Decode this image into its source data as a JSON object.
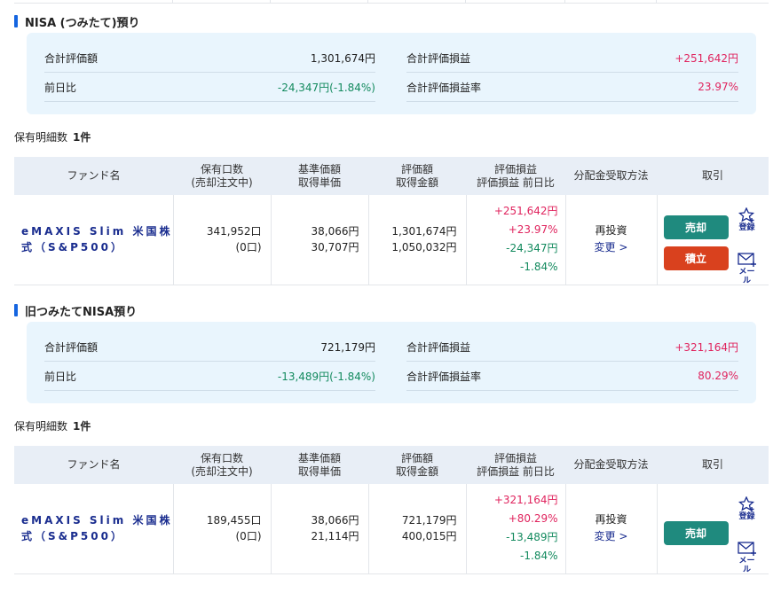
{
  "colors": {
    "accent": "#1565e0",
    "positive": "#e0245e",
    "negative": "#138a5e",
    "sell": "#1f8a7e",
    "accumulate": "#d9411e"
  },
  "table_headers": {
    "fund": "ファンド名",
    "units": "保有口数",
    "units_sub": "(売却注文中)",
    "nav": "基準価額",
    "nav_sub": "取得単価",
    "value": "評価額",
    "value_sub": "取得金額",
    "pl": "評価損益",
    "pl_sub": "評価損益 前日比",
    "dist": "分配金受取方法",
    "trade": "取引"
  },
  "sections": [
    {
      "title": "NISA (つみたて)預り",
      "summary": {
        "total_value_label": "合計評価額",
        "total_value": "1,301,674円",
        "day_change_label": "前日比",
        "day_change": "-24,347円(-1.84%)",
        "total_pl_label": "合計評価損益",
        "total_pl": "+251,642円",
        "pl_rate_label": "合計評価損益率",
        "pl_rate": "23.97%"
      },
      "count_label": "保有明細数",
      "count": "1件",
      "row": {
        "fund_name": "eMAXIS Slim 米国株式（S&P500）",
        "units": "341,952口",
        "units_pending": "(0口)",
        "nav": "38,066円",
        "avg_cost": "30,707円",
        "value": "1,301,674円",
        "cost": "1,050,032円",
        "pl": "+251,642円",
        "pl_pct": "+23.97%",
        "day_change": "-24,347円",
        "day_change_pct": "-1.84%",
        "dist_method": "再投資",
        "change_link": "変更",
        "sell": "売却",
        "accumulate": "積立",
        "register": "登録",
        "mail": "メール"
      }
    },
    {
      "title": "旧つみたてNISA預り",
      "summary": {
        "total_value_label": "合計評価額",
        "total_value": "721,179円",
        "day_change_label": "前日比",
        "day_change": "-13,489円(-1.84%)",
        "total_pl_label": "合計評価損益",
        "total_pl": "+321,164円",
        "pl_rate_label": "合計評価損益率",
        "pl_rate": "80.29%"
      },
      "count_label": "保有明細数",
      "count": "1件",
      "row": {
        "fund_name": "eMAXIS Slim 米国株式（S&P500）",
        "units": "189,455口",
        "units_pending": "(0口)",
        "nav": "38,066円",
        "avg_cost": "21,114円",
        "value": "721,179円",
        "cost": "400,015円",
        "pl": "+321,164円",
        "pl_pct": "+80.29%",
        "day_change": "-13,489円",
        "day_change_pct": "-1.84%",
        "dist_method": "再投資",
        "change_link": "変更",
        "sell": "売却",
        "register": "登録",
        "mail": "メール"
      }
    }
  ]
}
